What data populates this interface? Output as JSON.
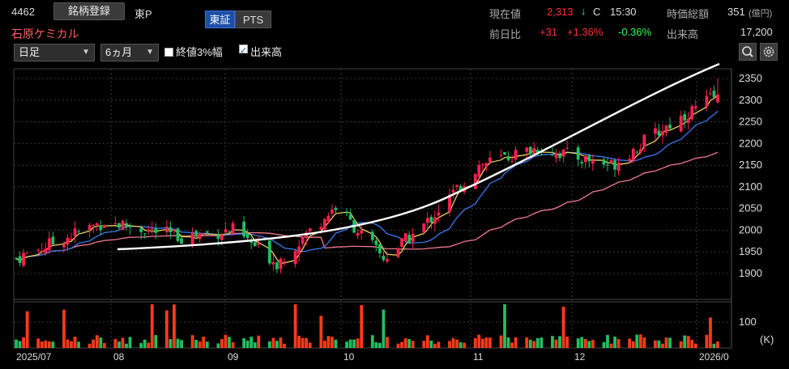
{
  "header": {
    "code": "4462",
    "register_button": "銘柄登録",
    "market": "東P",
    "tabs": [
      "東証",
      "PTS"
    ],
    "name": "石原ケミカル",
    "current_label": "現在値",
    "current_price": "2,313",
    "direction_arrow": "↓",
    "close_flag": "C",
    "time": "15:30",
    "mcap_label": "時価総額",
    "mcap_value": "351",
    "mcap_unit": "(億円)",
    "prev_label": "前日比",
    "change": "+31",
    "change_pct": "+1.36%",
    "change_pct2": "-0.36%",
    "volume_label": "出来高",
    "volume_value": "17,200"
  },
  "toolbar": {
    "period_select": "日足",
    "range_select": "6ヵ月",
    "check_3pct": "終値3%幅",
    "check_volume": "出来高",
    "check_3pct_on": false,
    "check_volume_on": true
  },
  "colors": {
    "up": "#ff2050",
    "down": "#20c060",
    "ma_short": "#e8d060",
    "ma_mid": "#3a78f0",
    "ma_long": "#f07890",
    "trend": "#ffffff",
    "volume": "#ff3a1a"
  },
  "chart_data": {
    "type": "candlestick",
    "y_ticks": [
      2350,
      2300,
      2250,
      2200,
      2150,
      2100,
      2050,
      2000,
      1950,
      1900
    ],
    "x_labels": [
      "2025/07",
      "08",
      "09",
      "10",
      "11",
      "12",
      "2026/0"
    ],
    "volume_tick": "100",
    "volume_unit": "(K)",
    "price_key_points": [
      {
        "date": "2025-07-01",
        "close": 1935
      },
      {
        "date": "2025-07-25",
        "close": 2020
      },
      {
        "date": "2025-08-15",
        "close": 1985
      },
      {
        "date": "2025-08-29",
        "close": 2000
      },
      {
        "date": "2025-09-10",
        "close": 1925
      },
      {
        "date": "2025-09-26",
        "close": 2055
      },
      {
        "date": "2025-10-09",
        "close": 1935
      },
      {
        "date": "2025-10-20",
        "close": 2010
      },
      {
        "date": "2025-11-04",
        "close": 2150
      },
      {
        "date": "2025-11-20",
        "close": 2190
      },
      {
        "date": "2025-12-10",
        "close": 2150
      },
      {
        "date": "2025-12-25",
        "close": 2240
      },
      {
        "date": "2026-01-08",
        "close": 2313
      }
    ],
    "ma_short": "5-day moving average",
    "ma_mid": "25-day moving average",
    "ma_long": "75-day moving average",
    "trend_line": "drawn curve from Aug to Jan (upward)"
  }
}
